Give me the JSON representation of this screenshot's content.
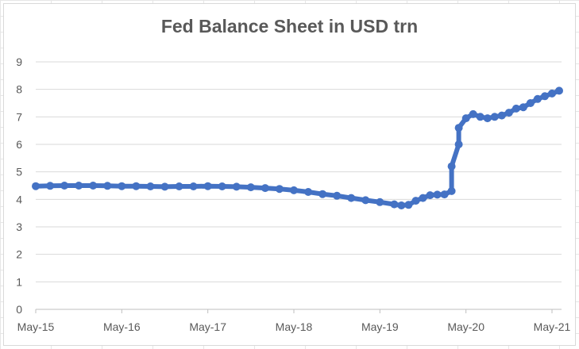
{
  "chart_data": {
    "type": "line",
    "title": "Fed Balance Sheet in USD trn",
    "xlabel": "",
    "ylabel": "",
    "ylim": [
      0,
      9
    ],
    "yticks": [
      0,
      1,
      2,
      3,
      4,
      5,
      6,
      7,
      8,
      9
    ],
    "xticks": [
      "May-15",
      "May-16",
      "May-17",
      "May-18",
      "May-19",
      "May-20",
      "May-21"
    ],
    "xlim": [
      "2015-05",
      "2021-05"
    ],
    "grid": true,
    "legend": "none",
    "marker": "circle",
    "color": "#4472C4",
    "series": [
      {
        "x": [
          "2015-05",
          "2015-07",
          "2015-09",
          "2015-11",
          "2016-01",
          "2016-03",
          "2016-05",
          "2016-07",
          "2016-09",
          "2016-11",
          "2017-01",
          "2017-03",
          "2017-05",
          "2017-07",
          "2017-09",
          "2017-11",
          "2018-01",
          "2018-03",
          "2018-05",
          "2018-07",
          "2018-09",
          "2018-11",
          "2019-01",
          "2019-03",
          "2019-05",
          "2019-07",
          "2019-08",
          "2019-09",
          "2019-10",
          "2019-11",
          "2019-12",
          "2020-01",
          "2020-02",
          "2020-03",
          "2020-03",
          "2020-04",
          "2020-04",
          "2020-05",
          "2020-06",
          "2020-07",
          "2020-08",
          "2020-09",
          "2020-10",
          "2020-11",
          "2020-12",
          "2021-01",
          "2021-02",
          "2021-03",
          "2021-04",
          "2021-05",
          "2021-06"
        ],
        "y": [
          4.48,
          4.49,
          4.5,
          4.5,
          4.5,
          4.49,
          4.48,
          4.48,
          4.47,
          4.46,
          4.47,
          4.47,
          4.48,
          4.47,
          4.46,
          4.44,
          4.41,
          4.38,
          4.33,
          4.27,
          4.19,
          4.13,
          4.05,
          3.97,
          3.9,
          3.82,
          3.78,
          3.8,
          3.95,
          4.05,
          4.15,
          4.17,
          4.18,
          4.3,
          5.2,
          6.0,
          6.6,
          6.95,
          7.1,
          7.0,
          6.95,
          7.0,
          7.05,
          7.15,
          7.3,
          7.35,
          7.5,
          7.65,
          7.75,
          7.85,
          7.95
        ]
      }
    ]
  }
}
